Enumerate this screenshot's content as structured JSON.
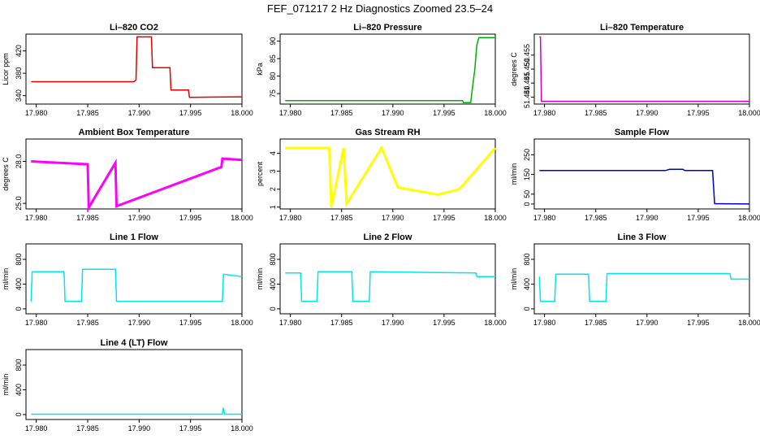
{
  "page_title": "FEF_071217  2 Hz Diagnostics Zoomed 23.5–24",
  "chart_data": [
    {
      "type": "line",
      "title": "Li–820 CO2",
      "ylabel": "Licor ppm",
      "xlabel": "",
      "color": "#e00000",
      "xlim": [
        17.979,
        18.0
      ],
      "ylim": [
        325,
        450
      ],
      "xticks": [
        17.98,
        17.985,
        17.99,
        17.995,
        18.0
      ],
      "xtick_labels": [
        "17.980",
        "17.985",
        "17.990",
        "17.995",
        "18.000"
      ],
      "yticks": [
        340,
        380,
        420
      ],
      "ytick_labels": [
        "340",
        "380",
        "420"
      ],
      "series": [
        {
          "x": [
            17.9795,
            17.9895,
            17.9897,
            17.9898,
            17.9912,
            17.9913,
            17.993,
            17.9931,
            17.9948,
            17.9949,
            18.0
          ],
          "y": [
            365,
            365,
            368,
            445,
            445,
            390,
            390,
            350,
            350,
            337,
            338
          ]
        }
      ]
    },
    {
      "type": "line",
      "title": "Li–820 Pressure",
      "ylabel": "kPa",
      "xlabel": "",
      "color": "#00b000",
      "xlim": [
        17.979,
        18.0
      ],
      "ylim": [
        72,
        92
      ],
      "xticks": [
        17.98,
        17.985,
        17.99,
        17.995,
        18.0
      ],
      "xtick_labels": [
        "17.980",
        "17.985",
        "17.990",
        "17.995",
        "18.000"
      ],
      "yticks": [
        75,
        80,
        85,
        90
      ],
      "ytick_labels": [
        "75",
        "80",
        "85",
        "90"
      ],
      "series": [
        {
          "x": [
            17.9795,
            17.9968,
            17.9969,
            17.9976,
            17.9977,
            17.998,
            17.9982,
            17.9984,
            18.0
          ],
          "y": [
            73,
            73,
            72.4,
            72.4,
            75,
            82,
            89,
            91,
            91
          ]
        }
      ]
    },
    {
      "type": "line",
      "title": "Li–820 Temperature",
      "ylabel": "degrees C",
      "xlabel": "",
      "color": "#cc00cc",
      "xlim": [
        17.979,
        18.0
      ],
      "ylim": [
        51.4375,
        51.4625
      ],
      "xticks": [
        17.98,
        17.985,
        17.99,
        17.995,
        18.0
      ],
      "xtick_labels": [
        "17.980",
        "17.985",
        "17.990",
        "17.995",
        "18.000"
      ],
      "yticks": [
        51.44,
        51.445,
        51.45,
        51.455
      ],
      "ytick_labels": [
        "51.440",
        "51.445",
        "51.450",
        "51.455"
      ],
      "series": [
        {
          "x": [
            17.9795,
            17.9796,
            17.9797,
            18.0
          ],
          "y": [
            51.4615,
            51.4615,
            51.4385,
            51.4385
          ]
        }
      ]
    },
    {
      "type": "line",
      "title": "Ambient Box Temperature",
      "ylabel": "degrees C",
      "xlabel": "",
      "color": "#ff00ff",
      "xlim": [
        17.979,
        18.0
      ],
      "ylim": [
        24.6,
        29.6
      ],
      "xticks": [
        17.98,
        17.985,
        17.99,
        17.995,
        18.0
      ],
      "xtick_labels": [
        "17.980",
        "17.985",
        "17.990",
        "17.995",
        "18.000"
      ],
      "yticks": [
        25.0,
        28.0
      ],
      "ytick_labels": [
        "25.0",
        "28.0"
      ],
      "series": [
        {
          "x": [
            17.9795,
            17.985,
            17.9851,
            17.9877,
            17.9878,
            17.998,
            17.9981,
            18.0
          ],
          "y": [
            28.0,
            27.8,
            24.7,
            27.9,
            24.8,
            27.6,
            28.2,
            28.1
          ]
        }
      ]
    },
    {
      "type": "line",
      "title": "Gas Stream RH",
      "ylabel": "percent",
      "xlabel": "",
      "color": "#ffff00",
      "xlim": [
        17.979,
        18.0
      ],
      "ylim": [
        0.9,
        4.8
      ],
      "xticks": [
        17.98,
        17.985,
        17.99,
        17.995,
        18.0
      ],
      "xtick_labels": [
        "17.980",
        "17.985",
        "17.990",
        "17.995",
        "18.000"
      ],
      "yticks": [
        1,
        2,
        3,
        4
      ],
      "ytick_labels": [
        "1",
        "2",
        "3",
        "4"
      ],
      "series": [
        {
          "x": [
            17.9795,
            17.9838,
            17.984,
            17.9852,
            17.9855,
            17.9889,
            17.9905,
            17.9944,
            17.9965,
            18.0
          ],
          "y": [
            4.3,
            4.3,
            1.0,
            4.3,
            1.2,
            4.3,
            2.1,
            1.7,
            2.0,
            4.3
          ]
        }
      ]
    },
    {
      "type": "line",
      "title": "Sample Flow",
      "ylabel": "ml/min",
      "xlabel": "",
      "color": "#0000cc",
      "xlim": [
        17.979,
        18.0
      ],
      "ylim": [
        -25,
        330
      ],
      "xticks": [
        17.98,
        17.985,
        17.99,
        17.995,
        18.0
      ],
      "xtick_labels": [
        "17.980",
        "17.985",
        "17.990",
        "17.995",
        "18.000"
      ],
      "yticks": [
        0,
        50,
        150,
        250
      ],
      "ytick_labels": [
        "0",
        "50",
        "150",
        "250"
      ],
      "series": [
        {
          "x": [
            17.9795,
            17.9918,
            17.9922,
            17.9935,
            17.9937,
            17.9964,
            17.9966,
            18.0
          ],
          "y": [
            170,
            170,
            176,
            176,
            170,
            170,
            2,
            0
          ]
        }
      ]
    },
    {
      "type": "line",
      "title": "Line 1 Flow",
      "ylabel": "ml/min",
      "xlabel": "",
      "color": "#00e5ee",
      "xlim": [
        17.979,
        18.0
      ],
      "ylim": [
        -80,
        1050
      ],
      "xticks": [
        17.98,
        17.985,
        17.99,
        17.995,
        18.0
      ],
      "xtick_labels": [
        "17.980",
        "17.985",
        "17.990",
        "17.995",
        "18.000"
      ],
      "yticks": [
        0,
        400,
        800
      ],
      "ytick_labels": [
        "0",
        "400",
        "800"
      ],
      "series": [
        {
          "x": [
            17.9795,
            17.9796,
            17.9827,
            17.9828,
            17.9844,
            17.9845,
            17.9877,
            17.9878,
            17.9981,
            17.9982,
            18.0
          ],
          "y": [
            120,
            600,
            600,
            120,
            120,
            640,
            640,
            120,
            120,
            560,
            520
          ]
        }
      ]
    },
    {
      "type": "line",
      "title": "Line 2 Flow",
      "ylabel": "ml/min",
      "xlabel": "",
      "color": "#00e5ee",
      "xlim": [
        17.979,
        18.0
      ],
      "ylim": [
        -80,
        1050
      ],
      "xticks": [
        17.98,
        17.985,
        17.99,
        17.995,
        18.0
      ],
      "xtick_labels": [
        "17.980",
        "17.985",
        "17.990",
        "17.995",
        "18.000"
      ],
      "yticks": [
        0,
        400,
        800
      ],
      "ytick_labels": [
        "0",
        "400",
        "800"
      ],
      "series": [
        {
          "x": [
            17.9795,
            17.981,
            17.9811,
            17.9826,
            17.9827,
            17.986,
            17.9861,
            17.9877,
            17.9878,
            17.9981,
            17.9982,
            18.0
          ],
          "y": [
            580,
            580,
            120,
            120,
            600,
            600,
            120,
            120,
            600,
            580,
            520,
            520
          ]
        }
      ]
    },
    {
      "type": "line",
      "title": "Line 3 Flow",
      "ylabel": "ml/min",
      "xlabel": "",
      "color": "#00e5ee",
      "xlim": [
        17.979,
        18.0
      ],
      "ylim": [
        -80,
        1050
      ],
      "xticks": [
        17.98,
        17.985,
        17.99,
        17.995,
        18.0
      ],
      "xtick_labels": [
        "17.980",
        "17.985",
        "17.990",
        "17.995",
        "18.000"
      ],
      "yticks": [
        0,
        400,
        800
      ],
      "ytick_labels": [
        "0",
        "400",
        "800"
      ],
      "series": [
        {
          "x": [
            17.9795,
            17.9796,
            17.981,
            17.9811,
            17.9843,
            17.9844,
            17.986,
            17.9861,
            17.9981,
            17.9982,
            18.0
          ],
          "y": [
            520,
            120,
            120,
            560,
            560,
            120,
            120,
            570,
            570,
            480,
            480
          ]
        }
      ]
    },
    {
      "type": "line",
      "title": "Line 4 (LT) Flow",
      "ylabel": "ml/min",
      "xlabel": "",
      "color": "#00e5ee",
      "xlim": [
        17.979,
        18.0
      ],
      "ylim": [
        -80,
        1050
      ],
      "xticks": [
        17.98,
        17.985,
        17.99,
        17.995,
        18.0
      ],
      "xtick_labels": [
        "17.980",
        "17.985",
        "17.990",
        "17.995",
        "18.000"
      ],
      "yticks": [
        0,
        400,
        800
      ],
      "ytick_labels": [
        "0",
        "400",
        "800"
      ],
      "series": [
        {
          "x": [
            17.9795,
            17.9981,
            17.9982,
            17.9983,
            18.0
          ],
          "y": [
            5,
            5,
            110,
            5,
            5
          ]
        }
      ]
    }
  ]
}
